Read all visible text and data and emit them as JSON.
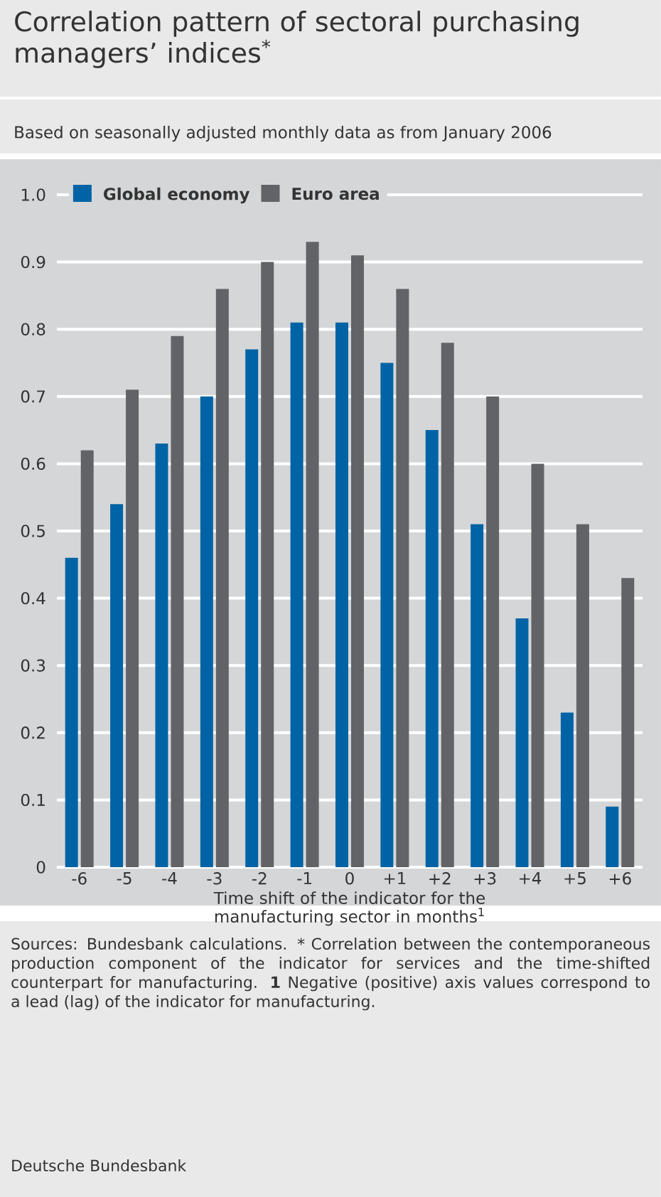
{
  "chart_data": {
    "type": "bar",
    "title": "Correlation pattern of sectoral purchasing managers’ indices$^{*}$",
    "subtitle": "Based on seasonally adjusted monthly data as from January 2006",
    "xlabel": "Time shift of the indicator for the manufacturing sector in months$^{1}$",
    "categories": [
      "-6",
      "-5",
      "-4",
      "-3",
      "-2",
      "-1",
      "0",
      "+1",
      "+2",
      "+3",
      "+4",
      "+5",
      "+6"
    ],
    "series": [
      {
        "name": "Global economy",
        "color": "#0063a5",
        "values": [
          0.46,
          0.54,
          0.63,
          0.7,
          0.77,
          0.81,
          0.81,
          0.75,
          0.65,
          0.51,
          0.37,
          0.23,
          0.09
        ]
      },
      {
        "name": "Euro area",
        "color": "#626366",
        "values": [
          0.62,
          0.71,
          0.79,
          0.86,
          0.9,
          0.93,
          0.91,
          0.86,
          0.78,
          0.7,
          0.6,
          0.51,
          0.43
        ]
      }
    ],
    "ylim": [
      0,
      1.0
    ],
    "yticks": [
      0,
      0.1,
      0.2,
      0.3,
      0.4,
      0.5,
      0.6,
      0.7,
      0.8,
      0.9,
      {
        "value": 1.0,
        "label": "1.0"
      }
    ],
    "grid": "y",
    "legend": "top left",
    "annotations": [
      "Sources: Bundesbank calculations.",
      "* Correlation between the contemporaneous production component of the indicator for services and the time-shifted counterpart for manufacturing.",
      "**1** Negative (positive) axis values correspond to a lead (lag) of the indicator for manufacturing.",
      "Deutsche Bundesbank"
    ]
  }
}
